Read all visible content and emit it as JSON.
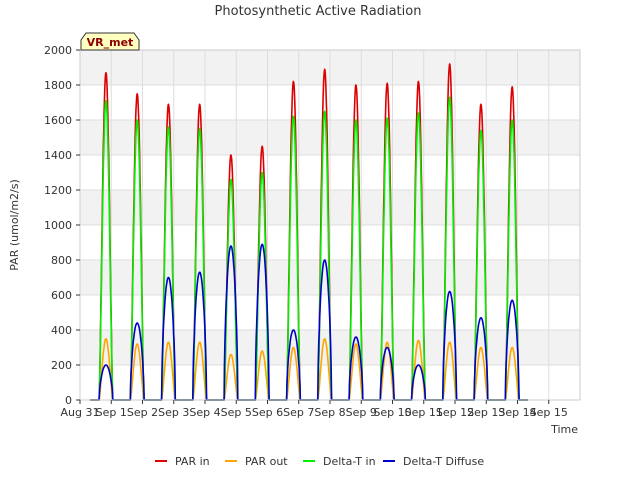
{
  "chart_data": {
    "type": "line",
    "title": "Photosynthetic Active Radiation",
    "xlabel": "Time",
    "ylabel": "PAR (umol/m2/s)",
    "ylim": [
      0,
      2000
    ],
    "xlim": [
      0,
      16
    ],
    "yticks": [
      0,
      200,
      400,
      600,
      800,
      1000,
      1200,
      1400,
      1600,
      1800,
      2000
    ],
    "xtick_labels": [
      "Aug 31",
      "Sep 1",
      "Sep 2",
      "Sep 3",
      "Sep 4",
      "Sep 5",
      "Sep 6",
      "Sep 7",
      "Sep 8",
      "Sep 9",
      "Sep 10",
      "Sep 11",
      "Sep 12",
      "Sep 13",
      "Sep 14",
      "Sep 15"
    ],
    "site_label": "VR_met",
    "grid": true,
    "legend_position": "bottom",
    "daily_peaks": {
      "PAR in": [
        1870,
        1750,
        1690,
        1690,
        1400,
        1450,
        1820,
        1890,
        1800,
        1810,
        1820,
        1920,
        1690,
        1790
      ],
      "PAR out": [
        350,
        320,
        330,
        330,
        260,
        280,
        300,
        350,
        320,
        330,
        340,
        330,
        300,
        300
      ],
      "Delta-T in": [
        1710,
        1600,
        1560,
        1550,
        1260,
        1300,
        1620,
        1650,
        1600,
        1610,
        1640,
        1730,
        1540,
        1600
      ],
      "Delta-T Diffuse": [
        200,
        440,
        700,
        730,
        880,
        890,
        400,
        800,
        360,
        300,
        200,
        620,
        470,
        570
      ]
    },
    "series": [
      {
        "name": "PAR in",
        "color": "#dd0000"
      },
      {
        "name": "PAR out",
        "color": "#ffa500"
      },
      {
        "name": "Delta-T in",
        "color": "#00ee00"
      },
      {
        "name": "Delta-T Diffuse",
        "color": "#0000cc"
      }
    ]
  }
}
